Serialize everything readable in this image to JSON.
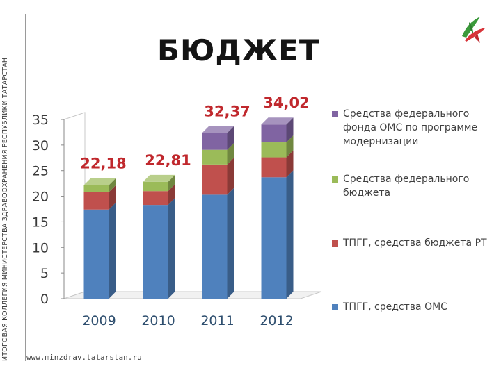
{
  "side_caption": "ИТОГОВАЯ КОЛЛЕГИЯ МИНИСТЕРСТВА ЗДРАВООХРАНЕНИЯ РЕСПУБЛИКИ ТАТАРСТАН",
  "title": "БЮДЖЕТ",
  "footer": "www.minzdrav.tatarstan.ru",
  "logo_icon": "tatarstan-health-logo",
  "chart_data": {
    "type": "bar",
    "stacked": true,
    "categories": [
      "2009",
      "2010",
      "2011",
      "2012"
    ],
    "ylim": [
      0,
      35
    ],
    "yticks": [
      "0",
      "5",
      "10",
      "15",
      "20",
      "25",
      "30",
      "35"
    ],
    "series": [
      {
        "name": "ТПГГ, средства ОМС",
        "color": "#4f81bd",
        "values": [
          17.4,
          18.3,
          20.3,
          23.7
        ]
      },
      {
        "name": "ТПГГ, средства бюджета РТ",
        "color": "#c0504d",
        "values": [
          3.4,
          2.7,
          5.9,
          3.9
        ]
      },
      {
        "name": "Средства федерального бюджета",
        "color": "#9bbb59",
        "values": [
          1.38,
          1.81,
          2.87,
          2.92
        ]
      },
      {
        "name": "Средства федерального фонда ОМС по программе модернизации",
        "color": "#8064a2",
        "values": [
          0,
          0,
          3.3,
          3.5
        ]
      }
    ],
    "totals": [
      "22,18",
      "22,81",
      "32,37",
      "34,02"
    ],
    "totals_color": "#c0282d",
    "legend_position": "right"
  }
}
